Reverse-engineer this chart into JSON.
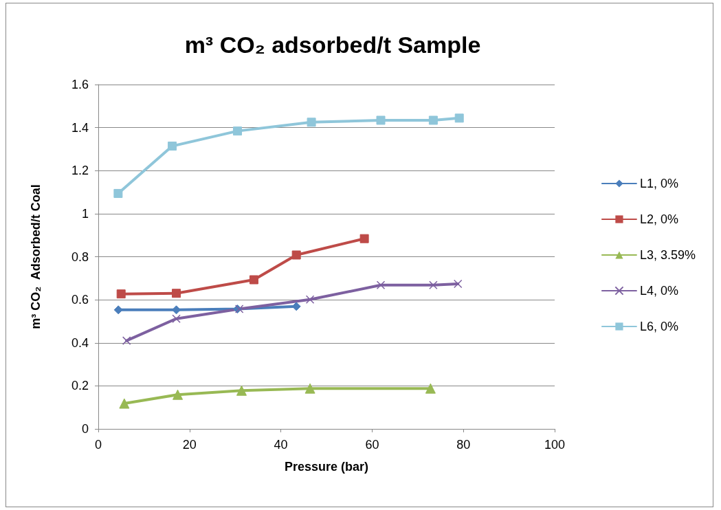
{
  "chart_data": {
    "type": "line",
    "title": "m³ CO₂ adsorbed/t Sample",
    "xlabel": "Pressure (bar)",
    "ylabel": "m³ CO₂  Adsorbed/t Coal",
    "xlim": [
      0,
      100
    ],
    "xticks": [
      0,
      20,
      40,
      60,
      80,
      100
    ],
    "ylim": [
      0,
      1.6
    ],
    "yticks": [
      0,
      0.2,
      0.4,
      0.6,
      0.8,
      1,
      1.2,
      1.4,
      1.6
    ],
    "grid": "y",
    "legend": "right",
    "line_style": "solid",
    "series": [
      {
        "name": "L1, 0%",
        "color": "#4a7ebb",
        "marker": "diamond",
        "x": [
          4.4,
          17.1,
          30.5,
          43.4
        ],
        "values": [
          0.553,
          0.553,
          0.557,
          0.569
        ]
      },
      {
        "name": "L2, 0%",
        "color": "#be4b48",
        "marker": "square",
        "x": [
          5.0,
          17.1,
          34.1,
          43.4,
          58.3
        ],
        "values": [
          0.627,
          0.63,
          0.693,
          0.808,
          0.884
        ]
      },
      {
        "name": "L3, 3.59%",
        "color": "#98b954",
        "marker": "triangle",
        "x": [
          5.7,
          17.4,
          31.4,
          46.4,
          72.8
        ],
        "values": [
          0.118,
          0.159,
          0.178,
          0.188,
          0.188
        ]
      },
      {
        "name": "L4, 0%",
        "color": "#7d60a0",
        "marker": "cross",
        "x": [
          6.2,
          17.1,
          30.9,
          46.4,
          61.9,
          73.4,
          78.8
        ],
        "values": [
          0.41,
          0.512,
          0.557,
          0.601,
          0.668,
          0.668,
          0.674
        ]
      },
      {
        "name": "L6, 0%",
        "color": "#8fc6da",
        "marker": "square",
        "x": [
          4.35,
          16.2,
          30.5,
          46.7,
          61.9,
          73.4,
          79.1
        ],
        "values": [
          1.094,
          1.314,
          1.384,
          1.425,
          1.434,
          1.434,
          1.444
        ]
      }
    ]
  }
}
